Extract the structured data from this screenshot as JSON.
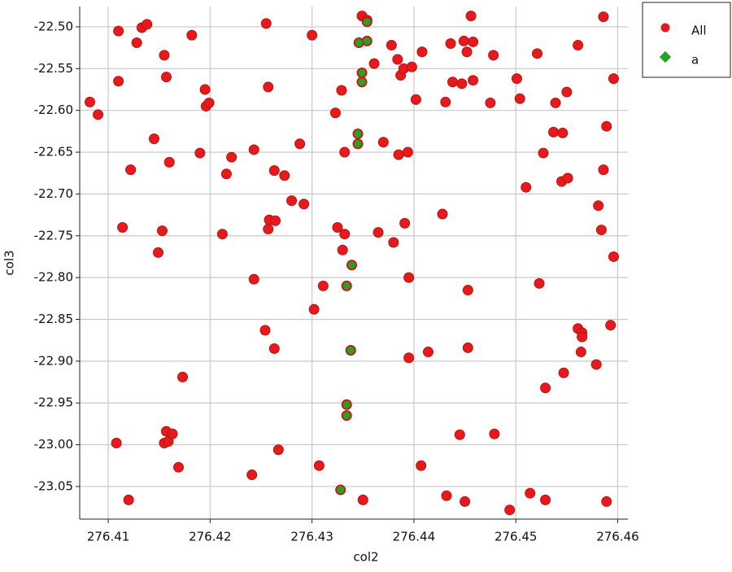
{
  "chart_data": {
    "type": "scatter",
    "x_label": "col2",
    "y_label": "col3",
    "xlim": [
      276.4072,
      276.461
    ],
    "ylim": [
      -23.089,
      -22.4757
    ],
    "xticks": [
      276.41,
      276.42,
      276.43,
      276.44,
      276.45,
      276.46
    ],
    "yticks": [
      {
        "value": -22.5,
        "label": "-22.50"
      },
      -22.55,
      {
        "value": -22.6,
        "label": "-22.60"
      },
      -22.65,
      {
        "value": -22.7,
        "label": "-22.70"
      },
      -22.75,
      {
        "value": -22.8,
        "label": "-22.80"
      },
      -22.85,
      {
        "value": -22.9,
        "label": "-22.90"
      },
      -22.95,
      {
        "value": -23.0,
        "label": "-23.00"
      },
      -23.05
    ],
    "grid": true,
    "legend": "outside-right",
    "series": [
      {
        "name": "All",
        "color": "#e41a1c",
        "x": [
          276.4082,
          276.409,
          276.411,
          276.411,
          276.4114,
          276.4108,
          276.412,
          276.4122,
          276.4128,
          276.4133,
          276.4138,
          276.4145,
          276.4149,
          276.4153,
          276.4155,
          276.4157,
          276.4157,
          276.4155,
          276.4159,
          276.4163,
          276.416,
          276.4169,
          276.4173,
          276.4182,
          276.419,
          276.4195,
          276.4196,
          276.4199,
          276.4216,
          276.4221,
          276.4212,
          276.4243,
          276.4243,
          276.4241,
          276.4255,
          276.4257,
          276.4254,
          276.4257,
          276.4258,
          276.4264,
          276.4263,
          276.4263,
          276.4267,
          276.4273,
          276.428,
          276.4288,
          276.4292,
          276.43,
          276.4302,
          276.4307,
          276.4311,
          276.4323,
          276.4325,
          276.4329,
          276.4332,
          276.4332,
          276.433,
          276.435,
          276.4361,
          276.4349,
          276.4354,
          276.4365,
          276.437,
          276.4378,
          276.438,
          276.4384,
          276.4387,
          276.4385,
          276.439,
          276.4391,
          276.4394,
          276.4395,
          276.4395,
          276.4398,
          276.4402,
          276.4408,
          276.4407,
          276.4414,
          276.4428,
          276.4431,
          276.4432,
          276.4436,
          276.4438,
          276.4445,
          276.4447,
          276.445,
          276.4449,
          276.4452,
          276.4453,
          276.4453,
          276.4456,
          276.4458,
          276.4458,
          276.4475,
          276.4478,
          276.4479,
          276.4494,
          276.4501,
          276.4504,
          276.451,
          276.4514,
          276.4521,
          276.4523,
          276.4527,
          276.4529,
          276.4529,
          276.4537,
          276.4539,
          276.4546,
          276.4545,
          276.4547,
          276.455,
          276.4551,
          276.4561,
          276.4561,
          276.4565,
          276.4565,
          276.4564,
          276.4579,
          276.4581,
          276.4584,
          276.4586,
          276.4586,
          276.4589,
          276.4589,
          276.4593,
          276.4596,
          276.4596,
          276.4354,
          276.4354,
          276.4346,
          276.4349,
          276.4349,
          276.4345,
          276.4345,
          276.4339,
          276.4334,
          276.4338,
          276.4334,
          276.4334,
          276.4328
        ],
        "values": [
          -22.59,
          -22.605,
          -22.505,
          -22.565,
          -22.74,
          -22.998,
          -23.066,
          -22.671,
          -22.519,
          -22.501,
          -22.497,
          -22.634,
          -22.77,
          -22.744,
          -22.534,
          -22.56,
          -22.984,
          -22.998,
          -22.996,
          -22.987,
          -22.662,
          -23.027,
          -22.919,
          -22.51,
          -22.651,
          -22.575,
          -22.595,
          -22.591,
          -22.676,
          -22.656,
          -22.748,
          -22.647,
          -22.802,
          -23.036,
          -22.496,
          -22.572,
          -22.863,
          -22.742,
          -22.731,
          -22.732,
          -22.672,
          -22.885,
          -23.006,
          -22.678,
          -22.708,
          -22.64,
          -22.712,
          -22.51,
          -22.838,
          -23.025,
          -22.81,
          -22.603,
          -22.74,
          -22.576,
          -22.65,
          -22.748,
          -22.767,
          -23.066,
          -22.544,
          -22.487,
          -22.492,
          -22.746,
          -22.638,
          -22.522,
          -22.758,
          -22.539,
          -22.558,
          -22.653,
          -22.55,
          -22.735,
          -22.65,
          -22.8,
          -22.896,
          -22.548,
          -22.587,
          -22.53,
          -23.025,
          -22.889,
          -22.724,
          -22.59,
          -23.061,
          -22.52,
          -22.566,
          -22.988,
          -22.568,
          -23.068,
          -22.517,
          -22.53,
          -22.815,
          -22.884,
          -22.487,
          -22.518,
          -22.564,
          -22.591,
          -22.534,
          -22.987,
          -23.078,
          -22.562,
          -22.586,
          -22.692,
          -23.058,
          -22.532,
          -22.807,
          -22.651,
          -23.066,
          -22.932,
          -22.626,
          -22.591,
          -22.627,
          -22.685,
          -22.914,
          -22.578,
          -22.681,
          -22.522,
          -22.861,
          -22.866,
          -22.871,
          -22.889,
          -22.904,
          -22.714,
          -22.743,
          -22.488,
          -22.671,
          -22.619,
          -23.068,
          -22.857,
          -22.562,
          -22.775,
          -22.494,
          -22.517,
          -22.519,
          -22.555,
          -22.566,
          -22.628,
          -22.64,
          -22.785,
          -22.81,
          -22.887,
          -22.952,
          -22.965,
          -23.054
        ]
      },
      {
        "name": "a",
        "color": "#1fa51f",
        "x": [
          276.4354,
          276.4354,
          276.4346,
          276.4349,
          276.4349,
          276.4345,
          276.4345,
          276.4339,
          276.4334,
          276.4338,
          276.4334,
          276.4334,
          276.4328
        ],
        "values": [
          -22.494,
          -22.517,
          -22.519,
          -22.555,
          -22.566,
          -22.628,
          -22.64,
          -22.785,
          -22.81,
          -22.887,
          -22.952,
          -22.965,
          -23.054
        ]
      }
    ]
  }
}
